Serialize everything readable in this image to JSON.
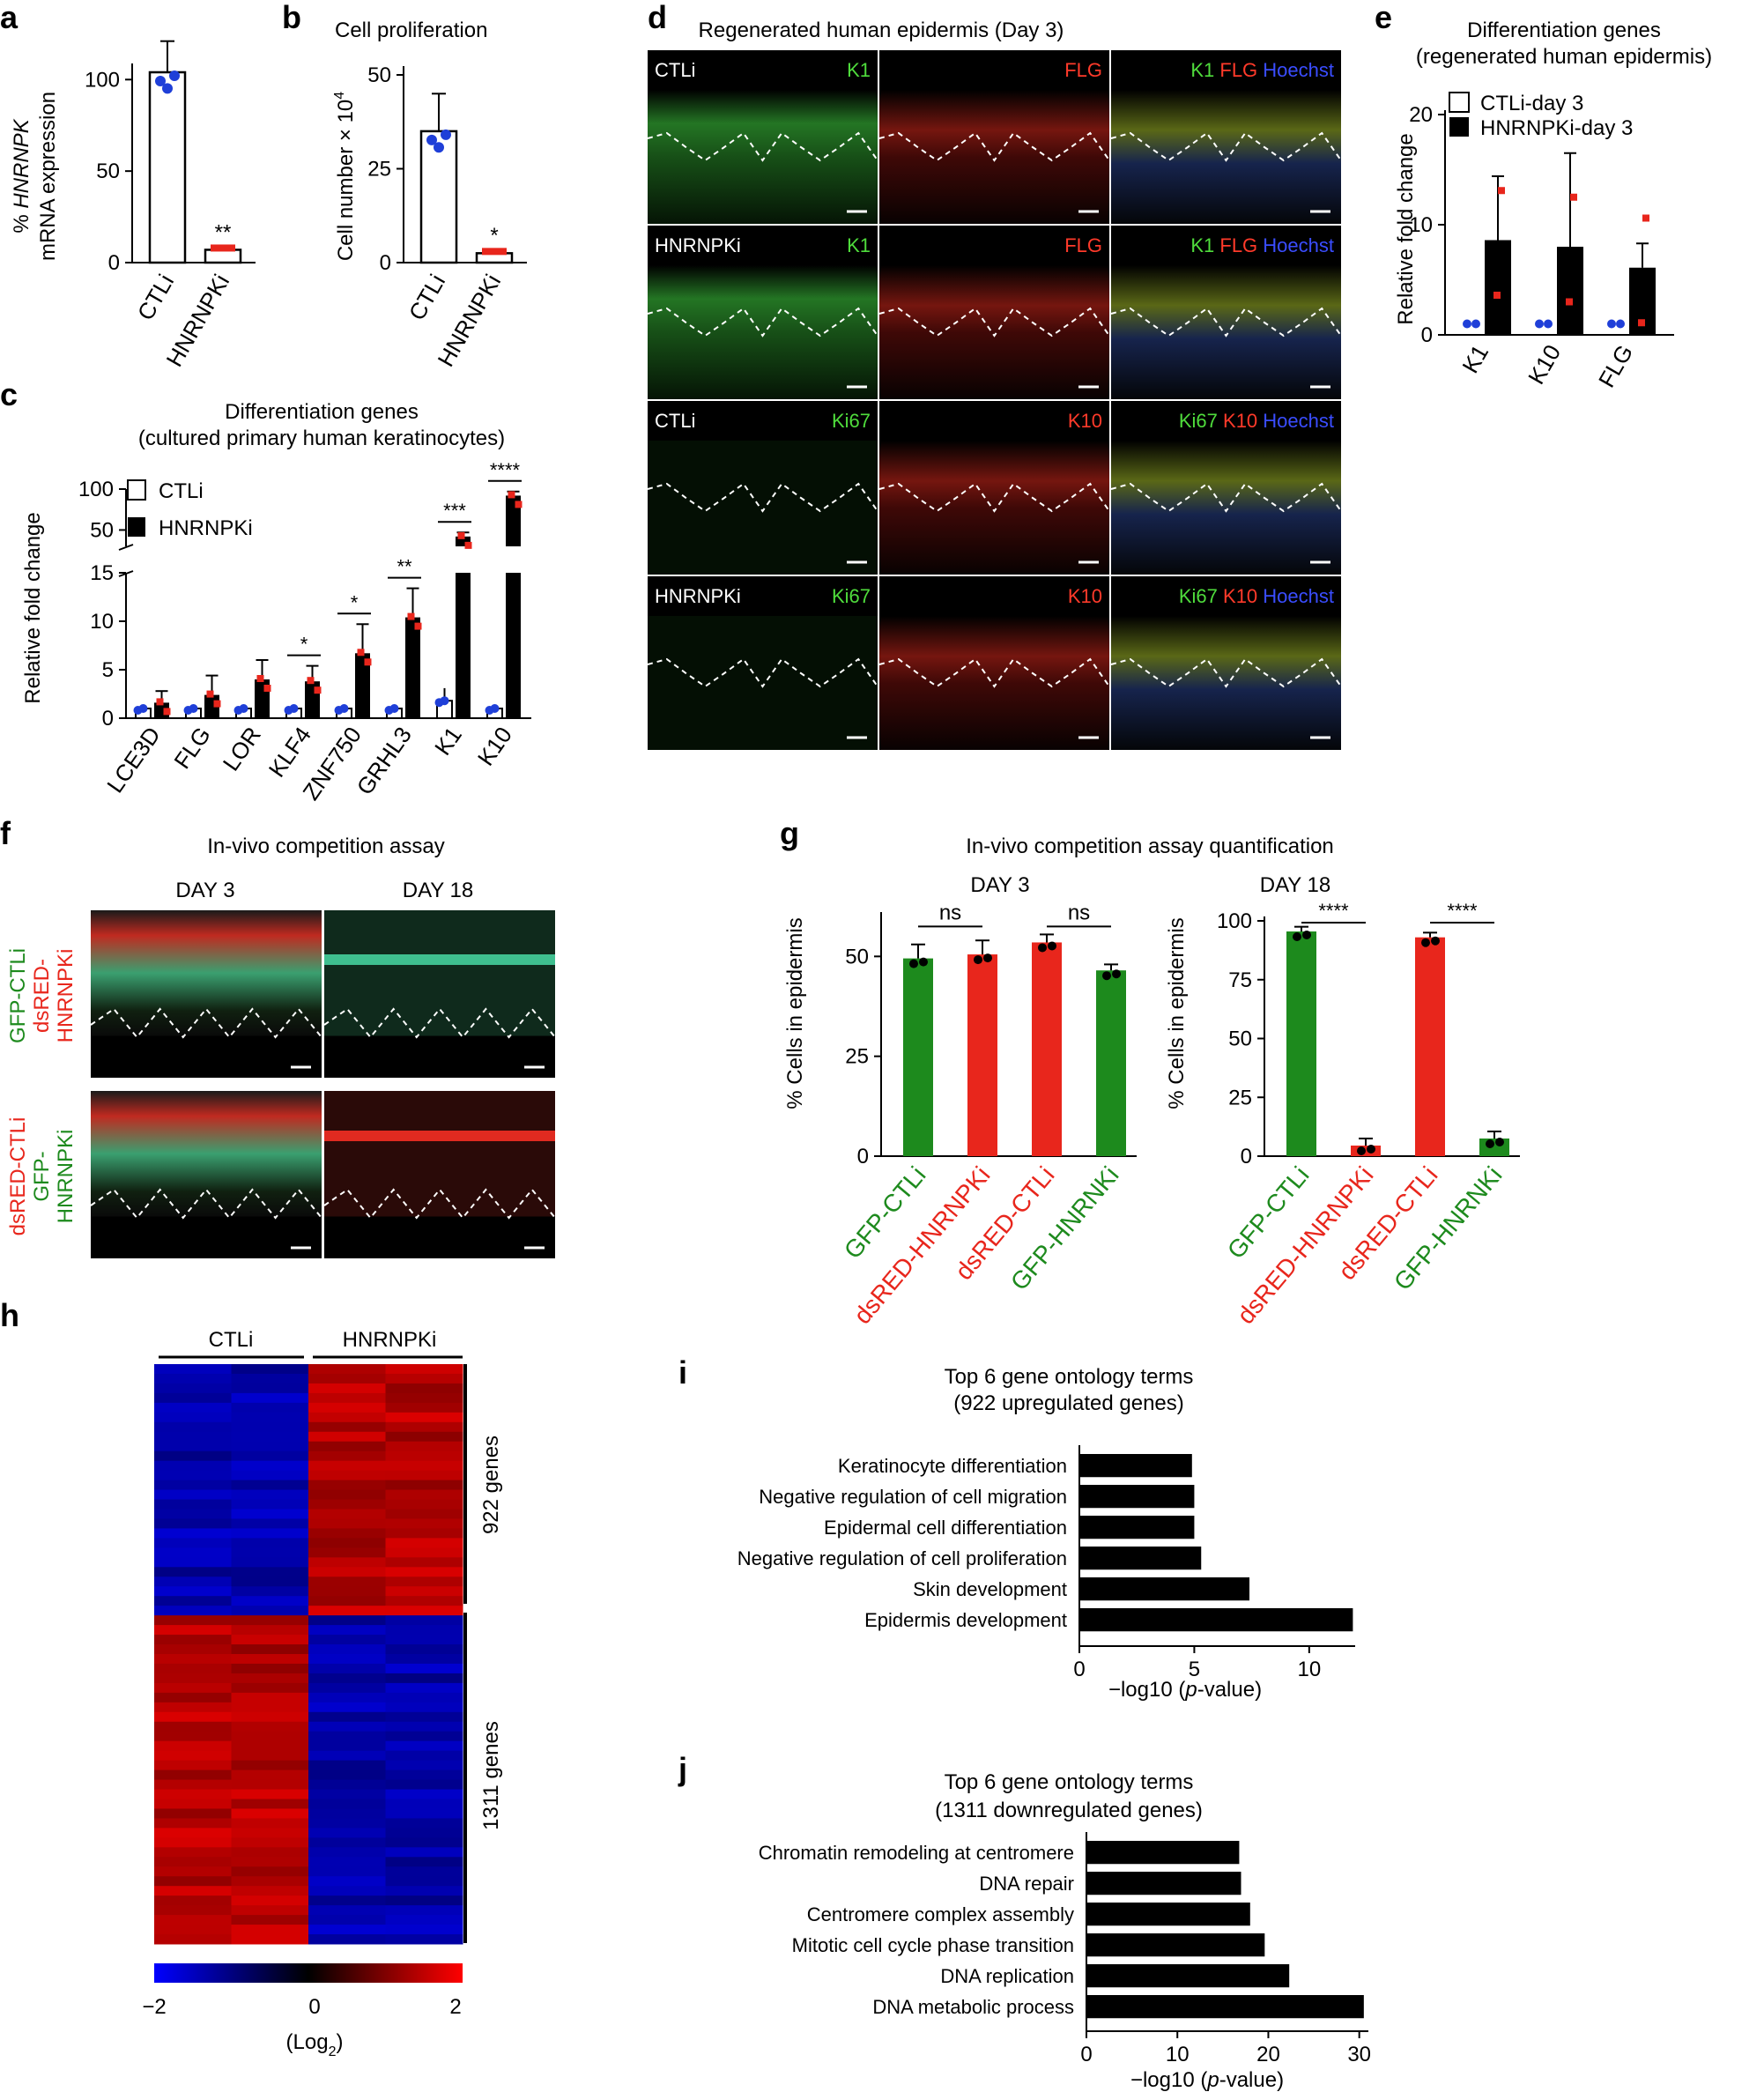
{
  "panels": {
    "a": {
      "label": "a",
      "ylabel1_italic": "HNRNPK",
      "ylabel1_prefix": "% ",
      "ylabel2": "mRNA expression",
      "yticks": [
        "0",
        "50",
        "100"
      ],
      "sig": "**"
    },
    "b": {
      "label": "b",
      "title": "Cell proliferation",
      "ylabel": "Cell number × 10",
      "ylabel_sup": "4",
      "yticks": [
        "0",
        "25",
        "50"
      ],
      "sig": "*"
    },
    "c": {
      "label": "c",
      "title1": "Differentiation genes",
      "title2": "(cultured primary human keratinocytes)",
      "ylabel": "Relative fold change",
      "yticks_low": [
        "0",
        "5",
        "10",
        "15"
      ],
      "yticks_high": [
        "50",
        "100"
      ],
      "legend": [
        "CTLi",
        "HNRNPKi"
      ],
      "sigs": [
        "*",
        "*",
        "**",
        "***",
        "****"
      ]
    },
    "d": {
      "label": "d",
      "title": "Regenerated human epidermis (Day 3)",
      "rows": [
        {
          "cond": "CTLi",
          "c1": "K1",
          "c2": "FLG",
          "m1": "K1",
          "m2": "FLG",
          "m3": "Hoechst"
        },
        {
          "cond": "HNRNPKi",
          "c1": "K1",
          "c2": "FLG",
          "m1": "K1",
          "m2": "FLG",
          "m3": "Hoechst"
        },
        {
          "cond": "CTLi",
          "c1": "Ki67",
          "c2": "K10",
          "m1": "Ki67",
          "m2": "K10",
          "m3": "Hoechst"
        },
        {
          "cond": "HNRNPKi",
          "c1": "Ki67",
          "c2": "K10",
          "m1": "Ki67",
          "m2": "K10",
          "m3": "Hoechst"
        }
      ]
    },
    "e": {
      "label": "e",
      "title1": "Differentiation genes",
      "title2": "(regenerated human epidermis)",
      "ylabel": "Relative fold change",
      "yticks": [
        "0",
        "10",
        "20"
      ],
      "legend": [
        "CTLi-day 3",
        "HNRNPKi-day 3"
      ]
    },
    "f": {
      "label": "f",
      "title": "In-vivo competition assay",
      "col1": "DAY 3",
      "col2": "DAY 18",
      "row1a": "GFP-CTLi",
      "row1b": "dsRED-",
      "row1c": "HNRNPKi",
      "row2a": "dsRED-CTLi",
      "row2b": "GFP-",
      "row2c": "HNRNPKi"
    },
    "g": {
      "label": "g",
      "title": "In-vivo competition assay quantification",
      "sub1": "DAY 3",
      "sub2": "DAY 18",
      "ylabel": "% Cells in epidermis",
      "yticks1": [
        "0",
        "25",
        "50"
      ],
      "yticks2": [
        "0",
        "25",
        "50",
        "75",
        "100"
      ],
      "ns": "ns",
      "sig": "****"
    },
    "h": {
      "label": "h",
      "col1": "CTLi",
      "col2": "HNRNPKi",
      "up": "922 genes",
      "down": "1311 genes",
      "cticks": [
        "−2",
        "0",
        "2"
      ],
      "clabel": "(Log",
      "clabel_sub": "2",
      "clabel_end": ")"
    },
    "i": {
      "label": "i",
      "title1": "Top 6 gene ontology terms",
      "title2": "(922 upregulated genes)",
      "xticks": [
        "0",
        "5",
        "10"
      ],
      "xlabel_pre": "−log10 (",
      "xlabel_it": "p",
      "xlabel_post": "-value)"
    },
    "j": {
      "label": "j",
      "title1": "Top 6 gene ontology terms",
      "title2": "(1311 downregulated genes)",
      "xticks": [
        "0",
        "10",
        "20",
        "30"
      ],
      "xlabel_pre": "−log10 (",
      "xlabel_it": "p",
      "xlabel_post": "-value)"
    }
  },
  "colors": {
    "blue": "#1f3fd8",
    "red": "#e8261c",
    "green": "#1d8a1d",
    "black": "#000000"
  },
  "chart_data": [
    {
      "type": "bar",
      "panel": "a",
      "categories": [
        "CTLi",
        "HNRNPKi"
      ],
      "values": [
        104,
        7
      ],
      "errors": [
        17,
        2
      ],
      "ylim": [
        0,
        125
      ]
    },
    {
      "type": "bar",
      "panel": "b",
      "categories": [
        "CTLi",
        "HNRNPKi"
      ],
      "values": [
        35,
        2.5
      ],
      "errors": [
        10,
        1
      ],
      "ylim": [
        0,
        50
      ]
    },
    {
      "type": "bar",
      "panel": "c",
      "categories": [
        "LCE3D",
        "FLG",
        "LOR",
        "KLF4",
        "ZNF750",
        "GRHL3",
        "K1",
        "K10"
      ],
      "series": [
        {
          "name": "CTLi",
          "values": [
            1,
            1,
            1,
            1,
            1,
            1,
            1.8,
            1
          ],
          "errors": [
            0.2,
            0.2,
            0.3,
            0.2,
            0.2,
            0.2,
            1.3,
            0.2
          ]
        },
        {
          "name": "HNRNPKi",
          "values": [
            1.6,
            2.4,
            4.0,
            3.8,
            6.7,
            10.4,
            42,
            92
          ],
          "errors": [
            1.2,
            2,
            2,
            1.6,
            3,
            3,
            5,
            5
          ]
        }
      ]
    },
    {
      "type": "bar",
      "panel": "e",
      "categories": [
        "K1",
        "K10",
        "FLG"
      ],
      "series": [
        {
          "name": "CTLi-day 3",
          "values": [
            1,
            1,
            1
          ],
          "errors": [
            0,
            0,
            0
          ]
        },
        {
          "name": "HNRNPKi-day 3",
          "values": [
            8.6,
            8.0,
            6.1
          ],
          "errors": [
            5.8,
            8.5,
            2.2
          ]
        }
      ],
      "ylim": [
        0,
        20
      ]
    },
    {
      "type": "bar",
      "panel": "g-day3",
      "categories": [
        "GFP-CTLi",
        "dsRED-HNRNPKi",
        "dsRED-CTLi",
        "GFP-HNRNKi"
      ],
      "values": [
        49.5,
        50.5,
        53.5,
        46.5
      ],
      "errors": [
        3.5,
        3.5,
        2,
        1.5
      ],
      "ylim": [
        0,
        60
      ]
    },
    {
      "type": "bar",
      "panel": "g-day18",
      "categories": [
        "GFP-CTLi",
        "dsRED-HNRNPKi",
        "dsRED-CTLi",
        "GFP-HNRNKi"
      ],
      "values": [
        95.5,
        4.5,
        93,
        7.5
      ],
      "errors": [
        2,
        3,
        2,
        3
      ],
      "ylim": [
        0,
        100
      ]
    },
    {
      "type": "bar",
      "panel": "i",
      "orientation": "horizontal",
      "categories": [
        "Keratinocyte differentiation",
        "Negative regulation of cell migration",
        "Epidermal cell differentiation",
        "Negative regulation of cell proliferation",
        "Skin development",
        "Epidermis development"
      ],
      "values": [
        4.9,
        5.0,
        5.0,
        5.3,
        7.4,
        11.9
      ],
      "xlim": [
        0,
        12
      ]
    },
    {
      "type": "bar",
      "panel": "j",
      "orientation": "horizontal",
      "categories": [
        "Chromatin remodeling at centromere",
        "DNA repair",
        "Centromere complex assembly",
        "Mitotic cell cycle phase transition",
        "DNA replication",
        "DNA metabolic process"
      ],
      "values": [
        16.8,
        17.0,
        18.0,
        19.6,
        22.3,
        30.5
      ],
      "xlim": [
        0,
        31
      ]
    }
  ]
}
